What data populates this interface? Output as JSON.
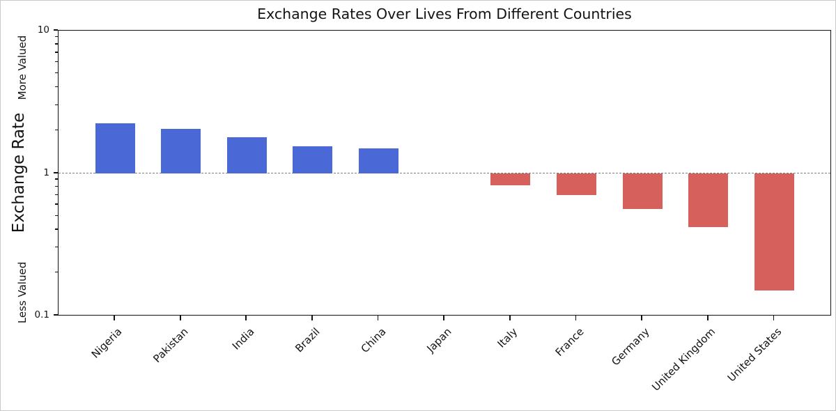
{
  "figure": {
    "title": "Exchange Rates Over Lives From Different Countries"
  },
  "y_axis": {
    "label": "Exchange Rate",
    "annotation_top": "More Valued",
    "annotation_bottom": "Less Valued",
    "tick_labels": [
      "10",
      "1",
      "0.1"
    ]
  },
  "chart_data": {
    "type": "bar",
    "title": "Exchange Rates Over Lives From Different Countries",
    "categories": [
      "Nigeria",
      "Pakistan",
      "India",
      "Brazil",
      "China",
      "Japan",
      "Italy",
      "France",
      "Germany",
      "United Kingdom",
      "United States"
    ],
    "values": [
      2.25,
      2.05,
      1.8,
      1.55,
      1.5,
      1.0,
      0.82,
      0.7,
      0.56,
      0.42,
      0.15
    ],
    "ylabel": "Exchange Rate",
    "ylabel_annotations": [
      "More Valued",
      "Less Valued"
    ],
    "xlabel": "",
    "yscale": "log",
    "ylim": [
      0.1,
      10
    ],
    "ytick_values": [
      10,
      1,
      0.1
    ],
    "ytick_labels": [
      "10",
      "1",
      "0.1"
    ],
    "baseline": 1.0,
    "baseline_style": "dashed",
    "baseline_color": "#7f7f7f",
    "bar_color_above_baseline": "#4B68D7",
    "bar_color_below_baseline": "#D6605C",
    "grid": false,
    "legend": false,
    "xtick_label_rotation_deg": 45
  }
}
